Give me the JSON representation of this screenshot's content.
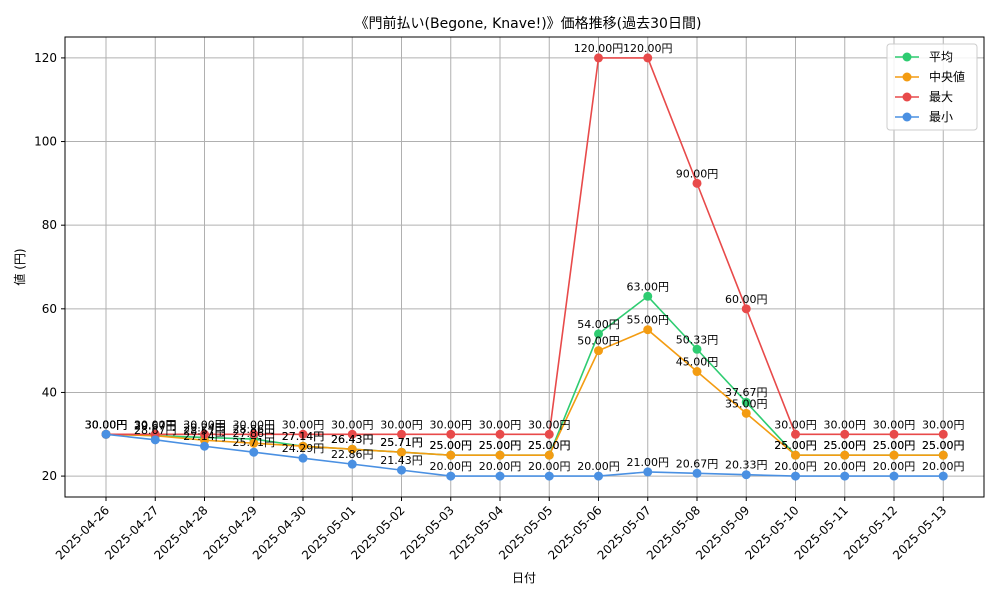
{
  "chart_data": {
    "type": "line",
    "title": "《門前払い(Begone, Knave!)》価格推移(過去30日間)",
    "xlabel": "日付",
    "ylabel": "値 (円)",
    "ylim": [
      15,
      125
    ],
    "yticks": [
      20,
      40,
      60,
      80,
      100,
      120
    ],
    "grid": true,
    "legend_position": "top-right",
    "label_suffix": "円",
    "categories": [
      "2025-04-26",
      "2025-04-27",
      "2025-04-28",
      "2025-04-29",
      "2025-04-30",
      "2025-05-01",
      "2025-05-02",
      "2025-05-03",
      "2025-05-04",
      "2025-05-05",
      "2025-05-06",
      "2025-05-07",
      "2025-05-08",
      "2025-05-09",
      "2025-05-10",
      "2025-05-11",
      "2025-05-12",
      "2025-05-13"
    ],
    "series": [
      {
        "name": "平均",
        "color": "#2ecc71",
        "values": [
          30.0,
          29.67,
          29.24,
          28.86,
          27.14,
          26.43,
          25.71,
          25.0,
          25.0,
          25.0,
          54.0,
          63.0,
          50.33,
          37.67,
          25.0,
          25.0,
          25.0,
          25.0
        ]
      },
      {
        "name": "中央値",
        "color": "#f39c12",
        "values": [
          30.0,
          29.67,
          28.57,
          27.86,
          27.14,
          26.43,
          25.71,
          25.0,
          25.0,
          25.0,
          50.0,
          55.0,
          45.0,
          35.0,
          25.0,
          25.0,
          25.0,
          25.0
        ]
      },
      {
        "name": "最大",
        "color": "#e84a4a",
        "values": [
          30.0,
          30.0,
          30.0,
          30.0,
          30.0,
          30.0,
          30.0,
          30.0,
          30.0,
          30.0,
          120.0,
          120.0,
          90.0,
          60.0,
          30.0,
          30.0,
          30.0,
          30.0
        ]
      },
      {
        "name": "最小",
        "color": "#4a90e2",
        "values": [
          30.0,
          28.67,
          27.14,
          25.71,
          24.29,
          22.86,
          21.43,
          20.0,
          20.0,
          20.0,
          20.0,
          21.0,
          20.67,
          20.33,
          20.0,
          20.0,
          20.0,
          20.0
        ]
      }
    ]
  }
}
